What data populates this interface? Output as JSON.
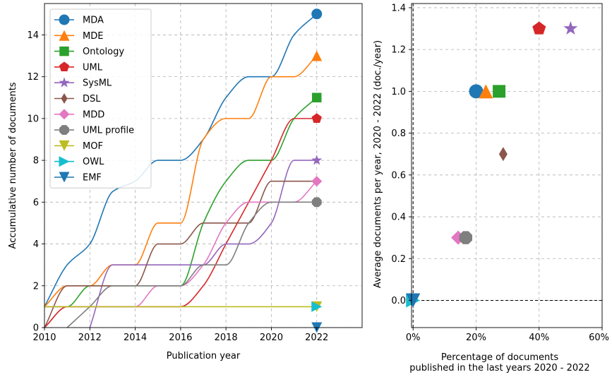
{
  "chart_data": [
    {
      "type": "line",
      "xlabel": "Publication year",
      "ylabel": "Accumulative number of documents",
      "xlim": [
        2010,
        2024
      ],
      "ylim": [
        0,
        15.5
      ],
      "xticks": [
        2010,
        2012,
        2014,
        2016,
        2018,
        2020,
        2022
      ],
      "yticks": [
        0,
        2,
        4,
        6,
        8,
        10,
        12,
        14
      ],
      "grid": true,
      "legend_position": "top-left",
      "series": [
        {
          "name": "MDA",
          "color": "#1f77b4",
          "marker": "circle",
          "x": [
            2010,
            2011,
            2012,
            2013,
            2014,
            2015,
            2016,
            2017,
            2018,
            2019,
            2020,
            2021,
            2022
          ],
          "y": [
            1,
            3,
            4,
            6.5,
            7,
            8,
            8,
            9,
            11,
            12,
            12,
            14,
            15
          ]
        },
        {
          "name": "MDE",
          "color": "#ff7f0e",
          "marker": "triangle-up",
          "x": [
            2010,
            2011,
            2012,
            2013,
            2014,
            2015,
            2016,
            2017,
            2018,
            2019,
            2020,
            2021,
            2022
          ],
          "y": [
            1,
            2,
            2,
            3,
            3,
            5,
            5,
            9,
            10,
            10,
            12,
            12,
            13
          ]
        },
        {
          "name": "Ontology",
          "color": "#2ca02c",
          "marker": "square",
          "x": [
            2010,
            2011,
            2012,
            2013,
            2014,
            2015,
            2016,
            2017,
            2018,
            2019,
            2020,
            2021,
            2022
          ],
          "y": [
            1,
            1,
            2,
            2,
            2,
            2,
            2,
            5,
            7,
            8,
            8,
            10,
            11
          ]
        },
        {
          "name": "UML",
          "color": "#d62728",
          "marker": "pentagon",
          "x": [
            2010,
            2011,
            2012,
            2013,
            2014,
            2015,
            2016,
            2017,
            2018,
            2019,
            2020,
            2021,
            2022
          ],
          "y": [
            0,
            1,
            1,
            1,
            1,
            1,
            1,
            2,
            4,
            6,
            8,
            10,
            10
          ]
        },
        {
          "name": "SysML",
          "color": "#9467bd",
          "marker": "star",
          "x": [
            2012,
            2013,
            2014,
            2015,
            2016,
            2017,
            2018,
            2019,
            2020,
            2021,
            2022
          ],
          "y": [
            0,
            3,
            3,
            3,
            3,
            3,
            4,
            4,
            5,
            8,
            8
          ]
        },
        {
          "name": "DSL",
          "color": "#8c564b",
          "marker": "thin-diamond",
          "x": [
            2010,
            2011,
            2012,
            2013,
            2014,
            2015,
            2016,
            2017,
            2018,
            2019,
            2020,
            2021,
            2022
          ],
          "y": [
            0,
            2,
            2,
            2,
            2,
            4,
            4,
            5,
            5,
            5,
            7,
            7,
            7
          ]
        },
        {
          "name": "MDD",
          "color": "#e377c2",
          "marker": "diamond",
          "x": [
            2010,
            2011,
            2012,
            2013,
            2014,
            2015,
            2016,
            2017,
            2018,
            2019,
            2020,
            2021,
            2022
          ],
          "y": [
            1,
            1,
            1,
            1,
            1,
            2,
            2,
            3,
            5,
            6,
            6,
            6,
            7
          ]
        },
        {
          "name": "UML profile",
          "color": "#7f7f7f",
          "marker": "octagon",
          "x": [
            2011,
            2012,
            2013,
            2014,
            2015,
            2016,
            2017,
            2018,
            2019,
            2020,
            2021,
            2022
          ],
          "y": [
            0,
            1,
            2,
            2,
            2,
            2,
            3,
            3,
            5,
            6,
            6,
            6
          ]
        },
        {
          "name": "MOF",
          "color": "#bcbd22",
          "marker": "triangle-down",
          "x": [
            2010,
            2011,
            2012,
            2013,
            2014,
            2015,
            2016,
            2017,
            2018,
            2019,
            2020,
            2021,
            2022
          ],
          "y": [
            1,
            1,
            1,
            1,
            1,
            1,
            1,
            1,
            1,
            1,
            1,
            1,
            1
          ]
        },
        {
          "name": "OWL",
          "color": "#17becf",
          "marker": "triangle-right",
          "x": [
            2022
          ],
          "y": [
            1
          ]
        },
        {
          "name": "EMF",
          "color": "#1f77b4",
          "marker": "triangle-down",
          "x": [
            2022
          ],
          "y": [
            0
          ]
        }
      ]
    },
    {
      "type": "scatter",
      "xlabel": "Percentage of documents\npublished in the last years 2020 - 2022",
      "ylabel": "Average documents per year, 2020 - 2022 (doc./year)",
      "xlim": [
        -0.5,
        60
      ],
      "ylim": [
        -0.13,
        1.42
      ],
      "xticks": [
        0,
        20,
        40,
        60
      ],
      "xtick_labels": [
        "0%",
        "20%",
        "40%",
        "60%"
      ],
      "yticks": [
        0.0,
        0.2,
        0.4,
        0.6,
        0.8,
        1.0,
        1.2,
        1.4
      ],
      "ytick_labels": [
        "0.0",
        "0.2",
        "0.4",
        "0.6",
        "0.8",
        "1.0",
        "1.2",
        "1.4"
      ],
      "grid": true,
      "reference_lines": [
        {
          "axis": "y",
          "value": 0,
          "style": "dashed"
        },
        {
          "axis": "x",
          "value": 0,
          "style": "dashed"
        }
      ],
      "points": [
        {
          "name": "MDA",
          "x": 20,
          "y": 1.0,
          "color": "#1f77b4",
          "marker": "circle"
        },
        {
          "name": "MDE",
          "x": 23.1,
          "y": 1.0,
          "color": "#ff7f0e",
          "marker": "triangle-up"
        },
        {
          "name": "Ontology",
          "x": 27.3,
          "y": 1.0,
          "color": "#2ca02c",
          "marker": "square"
        },
        {
          "name": "UML",
          "x": 40,
          "y": 1.3,
          "color": "#d62728",
          "marker": "pentagon"
        },
        {
          "name": "SysML",
          "x": 50,
          "y": 1.3,
          "color": "#9467bd",
          "marker": "star"
        },
        {
          "name": "DSL",
          "x": 28.6,
          "y": 0.7,
          "color": "#8c564b",
          "marker": "thin-diamond"
        },
        {
          "name": "MDD",
          "x": 14.3,
          "y": 0.3,
          "color": "#e377c2",
          "marker": "diamond"
        },
        {
          "name": "UML profile",
          "x": 16.7,
          "y": 0.3,
          "color": "#7f7f7f",
          "marker": "octagon"
        },
        {
          "name": "MOF",
          "x": 0,
          "y": 0.0,
          "color": "#bcbd22",
          "marker": "triangle-down"
        },
        {
          "name": "OWL",
          "x": 0,
          "y": 0.0,
          "color": "#17becf",
          "marker": "triangle-right"
        },
        {
          "name": "EMF",
          "x": 0,
          "y": 0.0,
          "color": "#1f77b4",
          "marker": "triangle-down"
        }
      ]
    }
  ]
}
